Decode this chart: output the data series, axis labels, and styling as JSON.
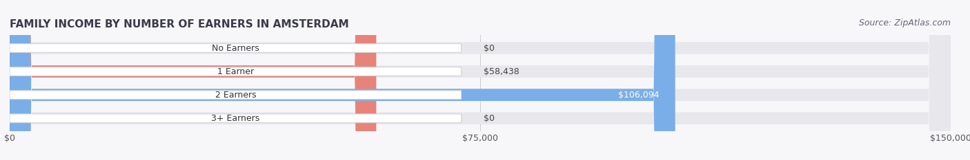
{
  "title": "FAMILY INCOME BY NUMBER OF EARNERS IN AMSTERDAM",
  "source": "Source: ZipAtlas.com",
  "categories": [
    "No Earners",
    "1 Earner",
    "2 Earners",
    "3+ Earners"
  ],
  "values": [
    0,
    58438,
    106094,
    0
  ],
  "labels": [
    "$0",
    "$58,438",
    "$106,094",
    "$0"
  ],
  "bar_colors": [
    "#f5c98a",
    "#e8837a",
    "#7aaee8",
    "#c9a8d4"
  ],
  "bar_bg_color": "#e8e8ec",
  "xlim_max": 150000,
  "xticks": [
    0,
    75000,
    150000
  ],
  "xticklabels": [
    "$0",
    "$75,000",
    "$150,000"
  ],
  "background_color": "#f7f7f9",
  "bar_height": 0.52,
  "title_fontsize": 11,
  "source_fontsize": 9,
  "value_fontsize": 9,
  "tick_fontsize": 9,
  "cat_fontsize": 9
}
